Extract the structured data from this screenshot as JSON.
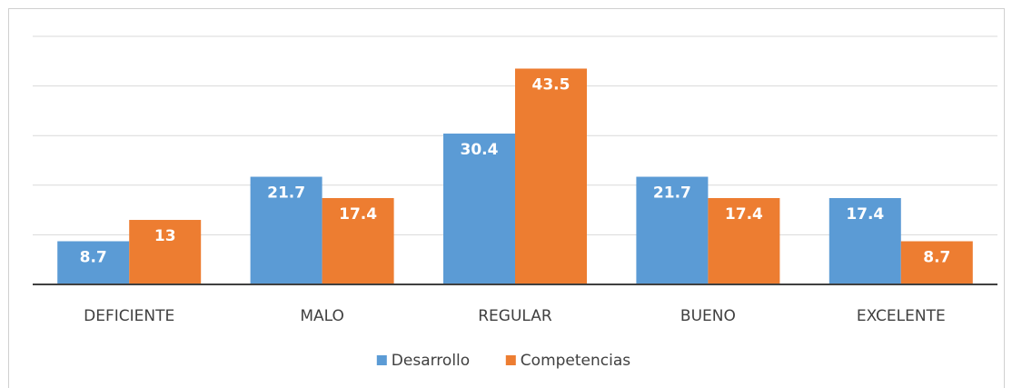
{
  "chart_data": {
    "type": "bar",
    "categories": [
      "DEFICIENTE",
      "MALO",
      "REGULAR",
      "BUENO",
      "EXCELENTE"
    ],
    "series": [
      {
        "name": "Desarrollo",
        "color": "#5b9bd5",
        "values": [
          8.7,
          21.7,
          30.4,
          21.7,
          17.4
        ]
      },
      {
        "name": "Competencias",
        "color": "#ed7d31",
        "values": [
          13,
          17.4,
          43.5,
          17.4,
          8.7
        ]
      }
    ],
    "ylim": [
      0,
      50
    ],
    "yticks": [
      0,
      10,
      20,
      30,
      40,
      50
    ],
    "grid": true,
    "legend": "bottom"
  }
}
